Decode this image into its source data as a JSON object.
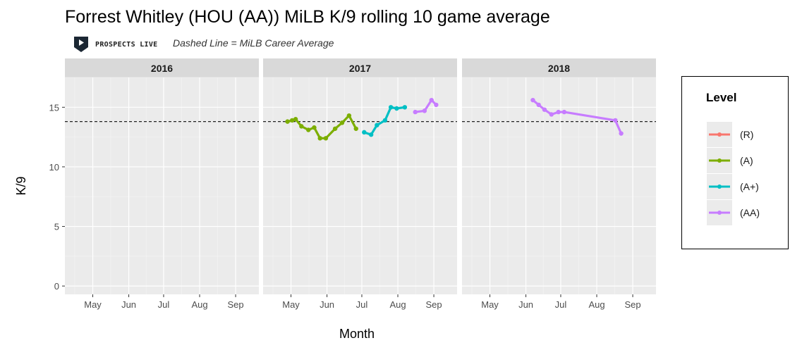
{
  "header": {
    "title": "Forrest Whitley (HOU (AA)) MiLB K/9 rolling 10 game average",
    "brand": "PROSPECTS LIVE",
    "subtitle": "Dashed Line = MiLB Career Average"
  },
  "legend": {
    "title": "Level",
    "items": [
      {
        "label": "(R)",
        "color": "#f8766d"
      },
      {
        "label": "(A)",
        "color": "#7cae00"
      },
      {
        "label": "(A+)",
        "color": "#00bfc4"
      },
      {
        "label": "(AA)",
        "color": "#c77cff"
      }
    ]
  },
  "chart_data": {
    "type": "line",
    "title": "Forrest Whitley (HOU (AA)) MiLB K/9 rolling 10 game average",
    "subtitle": "Dashed Line = MiLB Career Average",
    "xlabel": "Month",
    "ylabel": "K/9",
    "ylim": [
      -0.7,
      17.5
    ],
    "yticks": [
      0,
      5,
      10,
      15
    ],
    "xlim": [
      "04-07",
      "09-21"
    ],
    "xticks": [
      "May",
      "Jun",
      "Jul",
      "Aug",
      "Sep"
    ],
    "grid": true,
    "legend_position": "right",
    "career_average": 13.8,
    "facets": [
      {
        "label": "2016",
        "series": []
      },
      {
        "label": "2017",
        "series": [
          {
            "name": "(A)",
            "color": "#7cae00",
            "points": [
              {
                "x": "04-28",
                "y": 13.8
              },
              {
                "x": "05-02",
                "y": 13.9
              },
              {
                "x": "05-05",
                "y": 14.0
              },
              {
                "x": "05-10",
                "y": 13.4
              },
              {
                "x": "05-16",
                "y": 13.1
              },
              {
                "x": "05-21",
                "y": 13.3
              },
              {
                "x": "05-26",
                "y": 12.4
              },
              {
                "x": "05-31",
                "y": 12.4
              },
              {
                "x": "06-08",
                "y": 13.2
              },
              {
                "x": "06-14",
                "y": 13.7
              },
              {
                "x": "06-20",
                "y": 14.3
              },
              {
                "x": "06-26",
                "y": 13.2
              }
            ]
          },
          {
            "name": "(A+)",
            "color": "#00bfc4",
            "points": [
              {
                "x": "07-03",
                "y": 12.9
              },
              {
                "x": "07-09",
                "y": 12.7
              },
              {
                "x": "07-14",
                "y": 13.5
              },
              {
                "x": "07-21",
                "y": 13.9
              },
              {
                "x": "07-26",
                "y": 15.0
              },
              {
                "x": "07-31",
                "y": 14.9
              },
              {
                "x": "08-07",
                "y": 15.0
              }
            ]
          },
          {
            "name": "(AA)",
            "color": "#c77cff",
            "points": [
              {
                "x": "08-16",
                "y": 14.6
              },
              {
                "x": "08-24",
                "y": 14.7
              },
              {
                "x": "08-30",
                "y": 15.6
              },
              {
                "x": "09-03",
                "y": 15.2
              }
            ]
          }
        ]
      },
      {
        "label": "2018",
        "series": [
          {
            "name": "(AA)",
            "color": "#c77cff",
            "points": [
              {
                "x": "06-07",
                "y": 15.6
              },
              {
                "x": "06-12",
                "y": 15.2
              },
              {
                "x": "06-17",
                "y": 14.8
              },
              {
                "x": "06-23",
                "y": 14.4
              },
              {
                "x": "06-29",
                "y": 14.6
              },
              {
                "x": "07-04",
                "y": 14.6
              },
              {
                "x": "08-17",
                "y": 13.9
              },
              {
                "x": "08-22",
                "y": 12.8
              }
            ]
          }
        ]
      }
    ]
  }
}
